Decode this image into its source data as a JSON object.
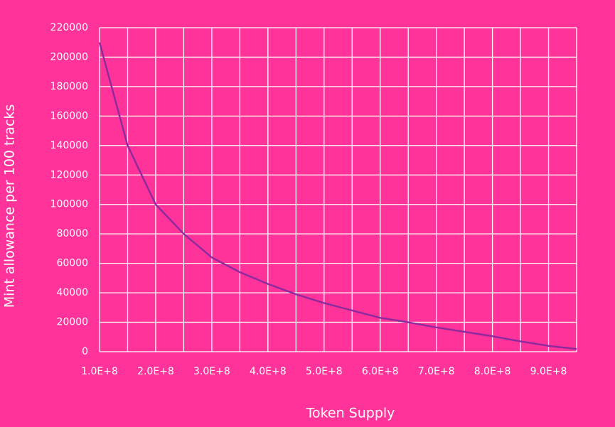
{
  "chart_data": {
    "type": "line",
    "x_label": "Token Supply",
    "y_label": "Mint allowance per 100 tracks",
    "x": [
      100000000,
      150000000,
      200000000,
      250000000,
      300000000,
      350000000,
      400000000,
      450000000,
      500000000,
      550000000,
      600000000,
      650000000,
      700000000,
      750000000,
      800000000,
      850000000,
      900000000,
      950000000
    ],
    "series": [
      {
        "color": "#8e2a9e",
        "values": [
          210000,
          140000,
          100000,
          80000,
          64000,
          54000,
          46000,
          39000,
          33000,
          28000,
          23000,
          20000,
          16500,
          13500,
          10500,
          7000,
          4000,
          1800
        ]
      }
    ],
    "xlim": [
      100000000,
      950000000
    ],
    "xticks": [
      {
        "value": 100000000,
        "label": "1.0E+8"
      },
      {
        "value": 200000000,
        "label": "2.0E+8"
      },
      {
        "value": 300000000,
        "label": "3.0E+8"
      },
      {
        "value": 400000000,
        "label": "4.0E+8"
      },
      {
        "value": 500000000,
        "label": "5.0E+8"
      },
      {
        "value": 600000000,
        "label": "6.0E+8"
      },
      {
        "value": 700000000,
        "label": "7.0E+8"
      },
      {
        "value": 800000000,
        "label": "8.0E+8"
      },
      {
        "value": 900000000,
        "label": "9.0E+8"
      }
    ],
    "x_minor_grid": [
      150000000,
      250000000,
      350000000,
      450000000,
      550000000,
      650000000,
      750000000,
      850000000,
      950000000
    ],
    "ylim": [
      0,
      220000
    ],
    "yticks": [
      0,
      20000,
      40000,
      60000,
      80000,
      100000,
      120000,
      140000,
      160000,
      180000,
      200000,
      220000
    ],
    "grid": true
  }
}
